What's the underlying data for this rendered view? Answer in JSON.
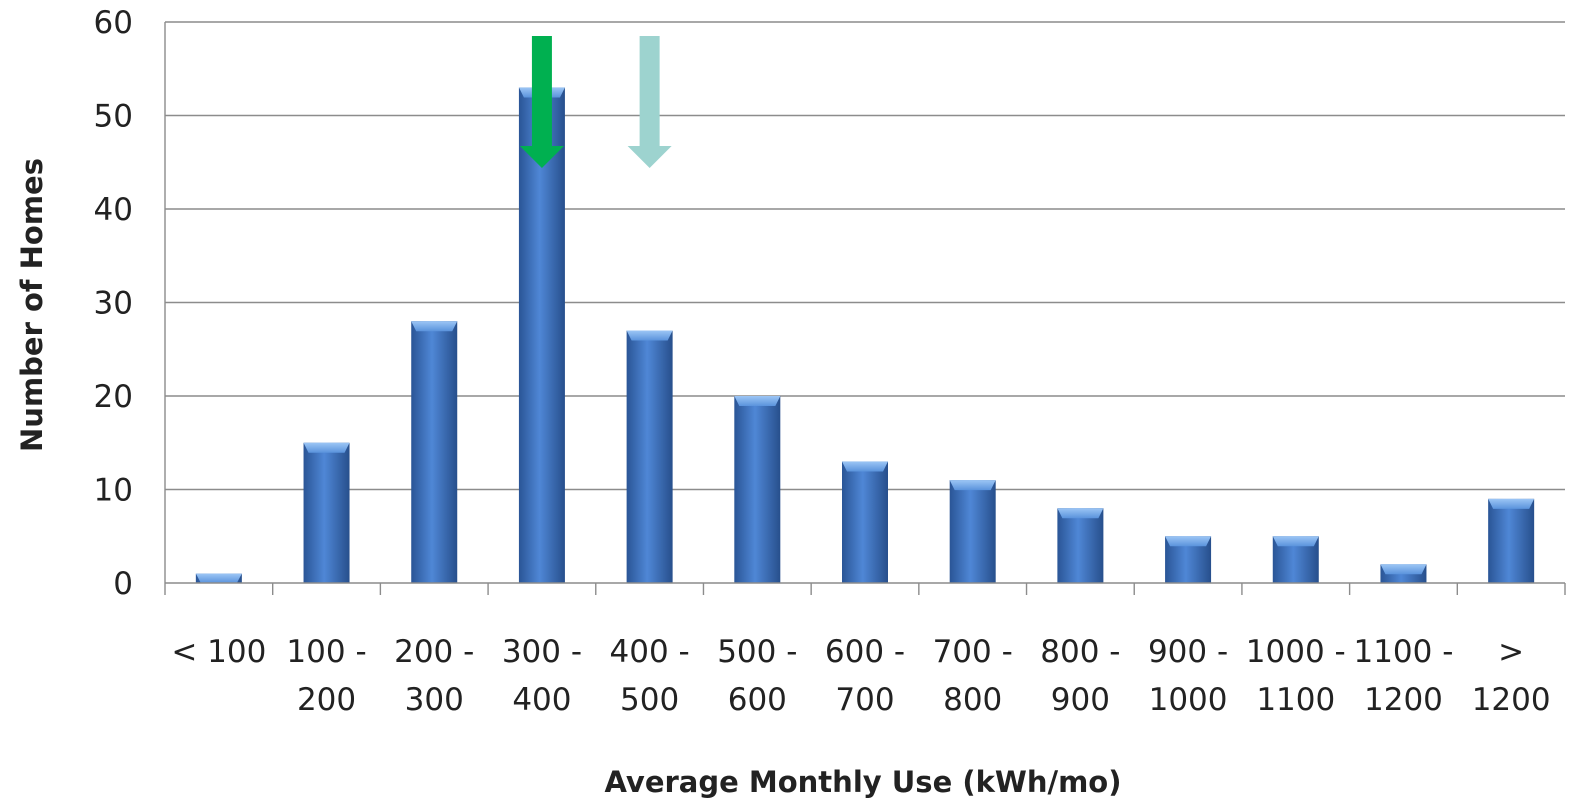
{
  "chart_data": {
    "type": "bar",
    "title": "",
    "xlabel": "Average Monthly Use (kWh/mo)",
    "ylabel": "Number of Homes",
    "ylim": [
      0,
      60
    ],
    "yticks": [
      0,
      10,
      20,
      30,
      40,
      50,
      60
    ],
    "grid": true,
    "legend": "none",
    "categories": [
      [
        "< 100"
      ],
      [
        "100 -",
        "200"
      ],
      [
        "200 -",
        "300"
      ],
      [
        "300 -",
        "400"
      ],
      [
        "400 -",
        "500"
      ],
      [
        "500 -",
        "600"
      ],
      [
        "600 -",
        "700"
      ],
      [
        "700 -",
        "800"
      ],
      [
        "800 -",
        "900"
      ],
      [
        "900 -",
        "1000"
      ],
      [
        "1000 -",
        "1100"
      ],
      [
        "1100 -",
        "1200"
      ],
      [
        ">",
        "1200"
      ]
    ],
    "values": [
      1,
      15,
      28,
      53,
      27,
      20,
      13,
      11,
      8,
      5,
      5,
      2,
      9
    ],
    "bar_color": "#3f74c4",
    "annotations": [
      {
        "type": "arrow",
        "x": 350,
        "color": "#00b050"
      },
      {
        "type": "arrow",
        "x": 450,
        "color": "#9dd3cf"
      }
    ]
  }
}
